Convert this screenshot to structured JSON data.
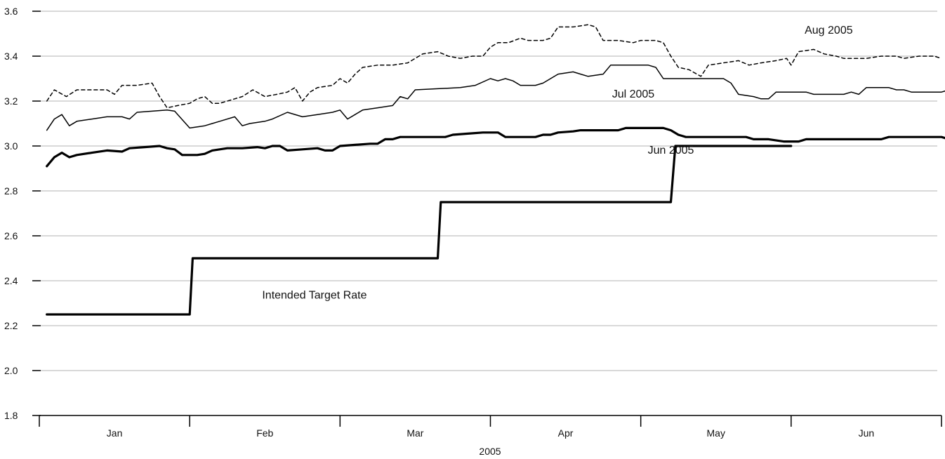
{
  "chart_data": {
    "type": "line",
    "title": "",
    "xlabel": "2005",
    "ylabel": "",
    "ylim": [
      1.8,
      3.6
    ],
    "yticks": [
      "1.8",
      "2.0",
      "2.2",
      "2.4",
      "2.6",
      "2.8",
      "3.0",
      "3.2",
      "3.4",
      "3.6"
    ],
    "grid": "horizontal",
    "x_categories": [
      "Jan",
      "Feb",
      "Mar",
      "Apr",
      "May",
      "Jun"
    ],
    "series": [
      {
        "name": "Aug 2005",
        "style": "dashed",
        "color": "#000000",
        "points": [
          [
            0.05,
            3.2
          ],
          [
            0.1,
            3.25
          ],
          [
            0.18,
            3.22
          ],
          [
            0.25,
            3.25
          ],
          [
            0.35,
            3.25
          ],
          [
            0.45,
            3.25
          ],
          [
            0.5,
            3.23
          ],
          [
            0.55,
            3.27
          ],
          [
            0.65,
            3.27
          ],
          [
            0.75,
            3.28
          ],
          [
            0.8,
            3.22
          ],
          [
            0.85,
            3.17
          ],
          [
            0.92,
            3.18
          ],
          [
            1.0,
            3.19
          ],
          [
            1.05,
            3.21
          ],
          [
            1.1,
            3.22
          ],
          [
            1.15,
            3.19
          ],
          [
            1.2,
            3.19
          ],
          [
            1.3,
            3.21
          ],
          [
            1.35,
            3.22
          ],
          [
            1.42,
            3.25
          ],
          [
            1.5,
            3.22
          ],
          [
            1.58,
            3.23
          ],
          [
            1.65,
            3.24
          ],
          [
            1.7,
            3.26
          ],
          [
            1.75,
            3.2
          ],
          [
            1.8,
            3.24
          ],
          [
            1.85,
            3.26
          ],
          [
            1.95,
            3.27
          ],
          [
            2.0,
            3.3
          ],
          [
            2.05,
            3.28
          ],
          [
            2.1,
            3.32
          ],
          [
            2.15,
            3.35
          ],
          [
            2.25,
            3.36
          ],
          [
            2.35,
            3.36
          ],
          [
            2.45,
            3.37
          ],
          [
            2.55,
            3.41
          ],
          [
            2.65,
            3.42
          ],
          [
            2.72,
            3.4
          ],
          [
            2.8,
            3.39
          ],
          [
            2.88,
            3.4
          ],
          [
            2.95,
            3.4
          ],
          [
            3.0,
            3.44
          ],
          [
            3.05,
            3.46
          ],
          [
            3.12,
            3.46
          ],
          [
            3.2,
            3.48
          ],
          [
            3.25,
            3.47
          ],
          [
            3.35,
            3.47
          ],
          [
            3.4,
            3.48
          ],
          [
            3.45,
            3.53
          ],
          [
            3.55,
            3.53
          ],
          [
            3.65,
            3.54
          ],
          [
            3.7,
            3.53
          ],
          [
            3.75,
            3.47
          ],
          [
            3.85,
            3.47
          ],
          [
            3.95,
            3.46
          ],
          [
            4.0,
            3.47
          ],
          [
            4.1,
            3.47
          ],
          [
            4.15,
            3.46
          ],
          [
            4.2,
            3.4
          ],
          [
            4.25,
            3.35
          ],
          [
            4.32,
            3.34
          ],
          [
            4.4,
            3.31
          ],
          [
            4.45,
            3.36
          ],
          [
            4.55,
            3.37
          ],
          [
            4.65,
            3.38
          ],
          [
            4.72,
            3.36
          ],
          [
            4.8,
            3.37
          ],
          [
            4.9,
            3.38
          ],
          [
            4.97,
            3.39
          ],
          [
            5.0,
            3.36
          ],
          [
            5.05,
            3.42
          ],
          [
            5.15,
            3.43
          ],
          [
            5.22,
            3.41
          ],
          [
            5.3,
            3.4
          ],
          [
            5.35,
            3.39
          ],
          [
            5.5,
            3.39
          ],
          [
            5.6,
            3.4
          ],
          [
            5.7,
            3.4
          ],
          [
            5.75,
            3.39
          ],
          [
            5.85,
            3.4
          ],
          [
            5.95,
            3.4
          ],
          [
            6.0,
            3.39
          ]
        ]
      },
      {
        "name": "Jul 2005",
        "style": "solid",
        "color": "#000000",
        "points": [
          [
            0.05,
            3.07
          ],
          [
            0.1,
            3.12
          ],
          [
            0.15,
            3.14
          ],
          [
            0.2,
            3.09
          ],
          [
            0.25,
            3.11
          ],
          [
            0.35,
            3.12
          ],
          [
            0.45,
            3.13
          ],
          [
            0.55,
            3.13
          ],
          [
            0.6,
            3.12
          ],
          [
            0.65,
            3.15
          ],
          [
            0.75,
            3.155
          ],
          [
            0.85,
            3.16
          ],
          [
            0.9,
            3.155
          ],
          [
            1.0,
            3.08
          ],
          [
            1.1,
            3.09
          ],
          [
            1.15,
            3.1
          ],
          [
            1.2,
            3.11
          ],
          [
            1.3,
            3.13
          ],
          [
            1.35,
            3.09
          ],
          [
            1.4,
            3.1
          ],
          [
            1.5,
            3.11
          ],
          [
            1.55,
            3.12
          ],
          [
            1.65,
            3.15
          ],
          [
            1.75,
            3.13
          ],
          [
            1.85,
            3.14
          ],
          [
            1.95,
            3.15
          ],
          [
            2.0,
            3.16
          ],
          [
            2.05,
            3.12
          ],
          [
            2.1,
            3.14
          ],
          [
            2.15,
            3.16
          ],
          [
            2.25,
            3.17
          ],
          [
            2.35,
            3.18
          ],
          [
            2.4,
            3.22
          ],
          [
            2.45,
            3.21
          ],
          [
            2.5,
            3.25
          ],
          [
            2.65,
            3.255
          ],
          [
            2.8,
            3.26
          ],
          [
            2.9,
            3.27
          ],
          [
            3.0,
            3.3
          ],
          [
            3.05,
            3.29
          ],
          [
            3.1,
            3.3
          ],
          [
            3.15,
            3.29
          ],
          [
            3.2,
            3.27
          ],
          [
            3.3,
            3.27
          ],
          [
            3.35,
            3.28
          ],
          [
            3.45,
            3.32
          ],
          [
            3.55,
            3.33
          ],
          [
            3.6,
            3.32
          ],
          [
            3.65,
            3.31
          ],
          [
            3.75,
            3.32
          ],
          [
            3.8,
            3.36
          ],
          [
            3.95,
            3.36
          ],
          [
            4.05,
            3.36
          ],
          [
            4.1,
            3.35
          ],
          [
            4.15,
            3.3
          ],
          [
            4.35,
            3.3
          ],
          [
            4.55,
            3.3
          ],
          [
            4.6,
            3.28
          ],
          [
            4.65,
            3.23
          ],
          [
            4.75,
            3.22
          ],
          [
            4.8,
            3.21
          ],
          [
            4.85,
            3.21
          ],
          [
            4.9,
            3.24
          ],
          [
            5.0,
            3.24
          ],
          [
            5.1,
            3.24
          ],
          [
            5.15,
            3.23
          ],
          [
            5.25,
            3.23
          ],
          [
            5.35,
            3.23
          ],
          [
            5.4,
            3.24
          ],
          [
            5.45,
            3.23
          ],
          [
            5.5,
            3.26
          ],
          [
            5.6,
            3.26
          ],
          [
            5.65,
            3.26
          ],
          [
            5.7,
            3.25
          ],
          [
            5.75,
            3.25
          ],
          [
            5.8,
            3.24
          ],
          [
            5.9,
            3.24
          ],
          [
            6.0,
            3.24
          ],
          [
            6.05,
            3.25
          ],
          [
            6.25,
            3.25
          ],
          [
            6.5,
            3.25
          ]
        ]
      },
      {
        "name": "Jun 2005",
        "style": "thick",
        "color": "#000000",
        "points": [
          [
            0.05,
            2.91
          ],
          [
            0.1,
            2.95
          ],
          [
            0.15,
            2.97
          ],
          [
            0.2,
            2.95
          ],
          [
            0.25,
            2.96
          ],
          [
            0.35,
            2.97
          ],
          [
            0.45,
            2.98
          ],
          [
            0.55,
            2.975
          ],
          [
            0.6,
            2.99
          ],
          [
            0.7,
            2.995
          ],
          [
            0.8,
            3.0
          ],
          [
            0.85,
            2.99
          ],
          [
            0.9,
            2.985
          ],
          [
            0.95,
            2.96
          ],
          [
            1.05,
            2.96
          ],
          [
            1.1,
            2.965
          ],
          [
            1.15,
            2.98
          ],
          [
            1.25,
            2.99
          ],
          [
            1.35,
            2.99
          ],
          [
            1.45,
            2.995
          ],
          [
            1.5,
            2.99
          ],
          [
            1.55,
            3.0
          ],
          [
            1.6,
            3.0
          ],
          [
            1.65,
            2.98
          ],
          [
            1.75,
            2.985
          ],
          [
            1.85,
            2.99
          ],
          [
            1.9,
            2.98
          ],
          [
            1.95,
            2.98
          ],
          [
            2.0,
            3.0
          ],
          [
            2.1,
            3.005
          ],
          [
            2.2,
            3.01
          ],
          [
            2.25,
            3.01
          ],
          [
            2.3,
            3.03
          ],
          [
            2.35,
            3.03
          ],
          [
            2.4,
            3.04
          ],
          [
            2.55,
            3.04
          ],
          [
            2.7,
            3.04
          ],
          [
            2.75,
            3.05
          ],
          [
            2.85,
            3.055
          ],
          [
            2.95,
            3.06
          ],
          [
            3.05,
            3.06
          ],
          [
            3.1,
            3.04
          ],
          [
            3.2,
            3.04
          ],
          [
            3.3,
            3.04
          ],
          [
            3.35,
            3.05
          ],
          [
            3.4,
            3.05
          ],
          [
            3.45,
            3.06
          ],
          [
            3.55,
            3.065
          ],
          [
            3.6,
            3.07
          ],
          [
            3.75,
            3.07
          ],
          [
            3.85,
            3.07
          ],
          [
            3.9,
            3.08
          ],
          [
            4.05,
            3.08
          ],
          [
            4.15,
            3.08
          ],
          [
            4.2,
            3.07
          ],
          [
            4.25,
            3.05
          ],
          [
            4.3,
            3.04
          ],
          [
            4.5,
            3.04
          ],
          [
            4.7,
            3.04
          ],
          [
            4.75,
            3.03
          ],
          [
            4.85,
            3.03
          ],
          [
            4.95,
            3.02
          ],
          [
            5.05,
            3.02
          ],
          [
            5.1,
            3.03
          ],
          [
            5.3,
            3.03
          ],
          [
            5.5,
            3.03
          ],
          [
            5.6,
            3.03
          ],
          [
            5.65,
            3.04
          ],
          [
            5.85,
            3.04
          ],
          [
            6.0,
            3.04
          ],
          [
            6.05,
            3.03
          ],
          [
            6.25,
            3.03
          ],
          [
            6.45,
            3.03
          ],
          [
            6.5,
            3.035
          ]
        ]
      },
      {
        "name": "Intended Target Rate",
        "style": "step",
        "color": "#000000",
        "points": [
          [
            0.05,
            2.25
          ],
          [
            1.0,
            2.25
          ],
          [
            1.02,
            2.5
          ],
          [
            2.65,
            2.5
          ],
          [
            2.67,
            2.75
          ],
          [
            4.2,
            2.75
          ],
          [
            4.23,
            3.0
          ],
          [
            5.0,
            3.0
          ]
        ]
      }
    ],
    "annotations": [
      {
        "text": "Aug 2005",
        "x": 5.25,
        "y": 3.5
      },
      {
        "text": "Jul 2005",
        "x": 3.95,
        "y": 3.215
      },
      {
        "text": "Jun 2005",
        "x": 4.2,
        "y": 2.965
      },
      {
        "text": "Intended Target Rate",
        "x": 1.83,
        "y": 2.32
      }
    ]
  }
}
